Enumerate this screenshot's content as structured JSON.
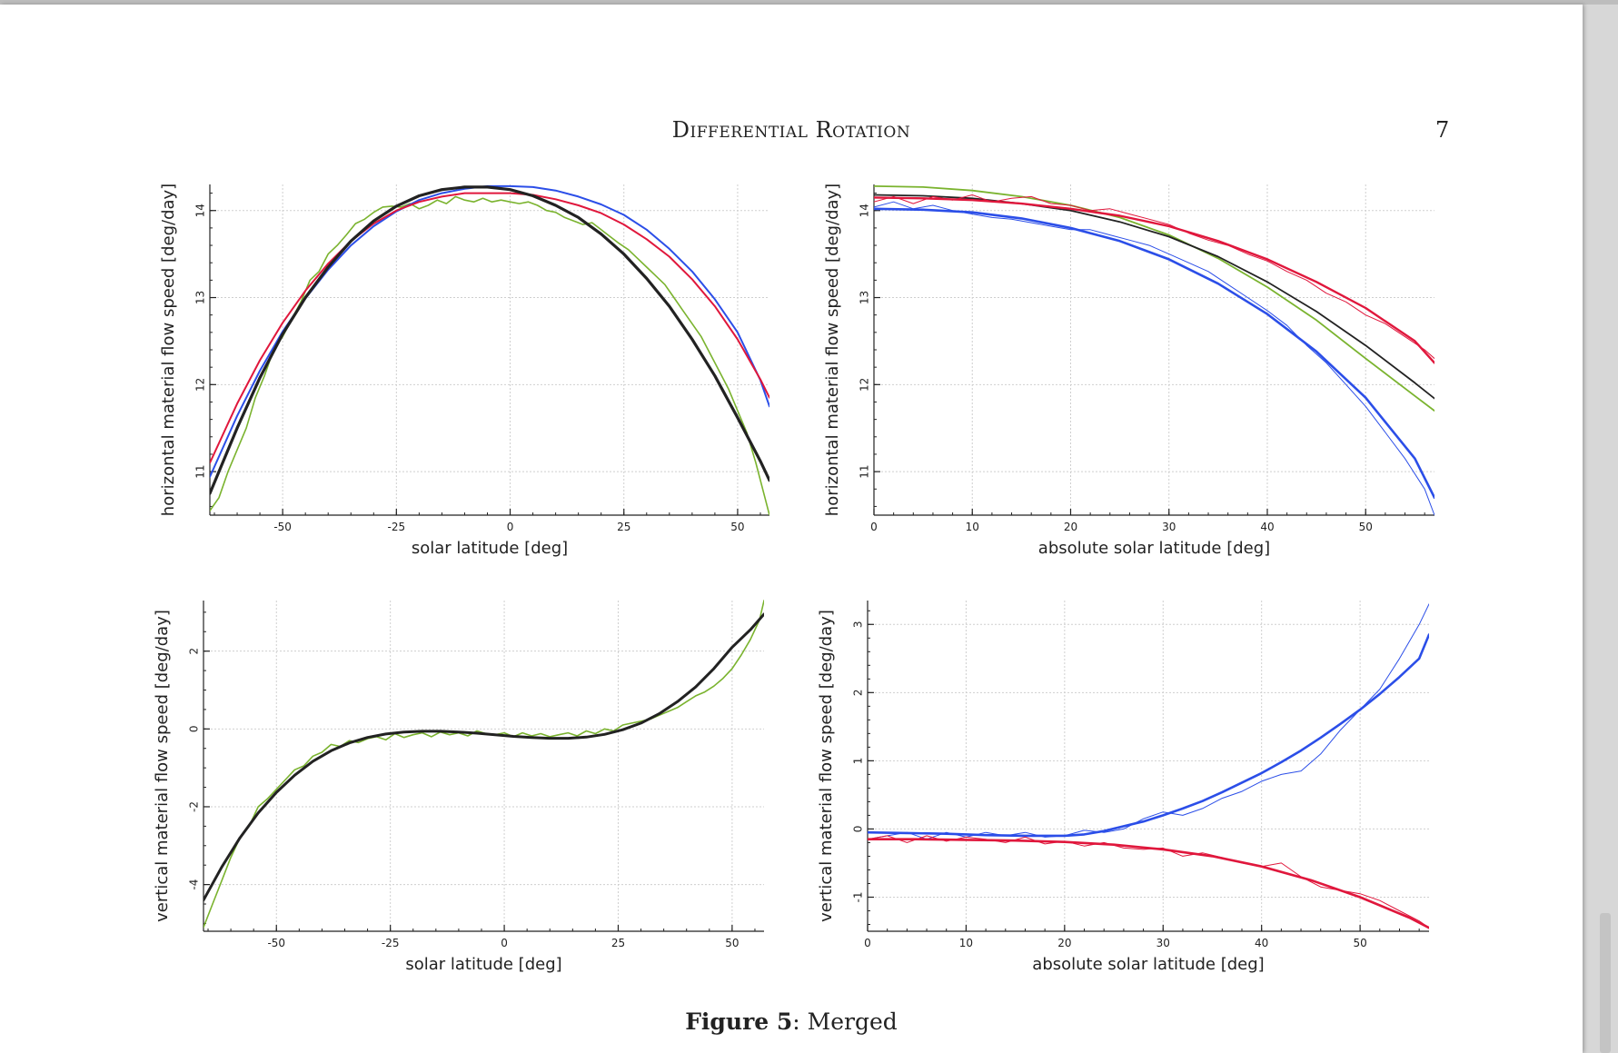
{
  "document": {
    "running_header": "Differential Rotation",
    "page_number": "7",
    "caption_label": "Figure 5",
    "caption_sep": ": ",
    "caption_text": "Merged"
  },
  "chart_data": [
    {
      "type": "line",
      "xlabel": "solar latitude [deg]",
      "ylabel": "horizontal material flow speed [deg/day]",
      "xlim": [
        -66,
        57
      ],
      "ylim": [
        10.5,
        14.3
      ],
      "xticks": [
        -50,
        -25,
        0,
        25,
        50
      ],
      "yticks": [
        11,
        12,
        13,
        14
      ],
      "grid": true,
      "series": [
        {
          "color": "#7ab32e",
          "width": 1.6,
          "x": [
            -66,
            -64,
            -62,
            -60,
            -58,
            -56,
            -54,
            -52,
            -50,
            -48,
            -46,
            -44,
            -42,
            -40,
            -38,
            -36,
            -34,
            -32,
            -30,
            -28,
            -26,
            -24,
            -22,
            -20,
            -18,
            -16,
            -14,
            -12,
            -10,
            -8,
            -6,
            -4,
            -2,
            0,
            2,
            4,
            6,
            8,
            10,
            12,
            14,
            16,
            18,
            20,
            22,
            24,
            26,
            28,
            30,
            32,
            34,
            36,
            38,
            40,
            42,
            44,
            46,
            48,
            50,
            52,
            54,
            56,
            57
          ],
          "y": [
            10.55,
            10.7,
            11.0,
            11.25,
            11.5,
            11.85,
            12.1,
            12.4,
            12.55,
            12.75,
            12.95,
            13.2,
            13.3,
            13.5,
            13.6,
            13.72,
            13.85,
            13.9,
            13.98,
            14.04,
            14.05,
            14.04,
            14.08,
            14.02,
            14.06,
            14.12,
            14.08,
            14.16,
            14.12,
            14.1,
            14.14,
            14.1,
            14.12,
            14.1,
            14.08,
            14.1,
            14.06,
            14.0,
            13.98,
            13.92,
            13.88,
            13.84,
            13.86,
            13.78,
            13.7,
            13.62,
            13.55,
            13.45,
            13.35,
            13.25,
            13.15,
            13.0,
            12.85,
            12.7,
            12.55,
            12.35,
            12.15,
            11.95,
            11.7,
            11.45,
            11.1,
            10.7,
            10.5
          ]
        },
        {
          "color": "#2b4ee8",
          "width": 2.0,
          "x": [
            -66,
            -60,
            -55,
            -50,
            -45,
            -40,
            -35,
            -30,
            -25,
            -20,
            -15,
            -10,
            -5,
            0,
            5,
            10,
            15,
            20,
            25,
            30,
            35,
            40,
            45,
            50,
            55,
            57
          ],
          "y": [
            10.94,
            11.64,
            12.16,
            12.61,
            12.99,
            13.32,
            13.6,
            13.82,
            13.99,
            14.12,
            14.2,
            14.25,
            14.28,
            14.28,
            14.27,
            14.23,
            14.16,
            14.07,
            13.95,
            13.78,
            13.56,
            13.3,
            12.98,
            12.6,
            12.05,
            11.75
          ]
        },
        {
          "color": "#e0173c",
          "width": 2.0,
          "x": [
            -66,
            -60,
            -55,
            -50,
            -45,
            -40,
            -35,
            -30,
            -25,
            -20,
            -15,
            -10,
            -5,
            0,
            5,
            10,
            15,
            20,
            25,
            30,
            35,
            40,
            45,
            50,
            55,
            57
          ],
          "y": [
            11.1,
            11.78,
            12.28,
            12.71,
            13.08,
            13.39,
            13.65,
            13.85,
            14.0,
            14.1,
            14.16,
            14.2,
            14.2,
            14.2,
            14.18,
            14.13,
            14.06,
            13.97,
            13.84,
            13.67,
            13.47,
            13.21,
            12.9,
            12.52,
            12.06,
            11.85
          ]
        },
        {
          "color": "#222222",
          "width": 3.2,
          "x": [
            -66,
            -60,
            -55,
            -50,
            -45,
            -40,
            -35,
            -30,
            -25,
            -20,
            -15,
            -10,
            -5,
            0,
            5,
            10,
            15,
            20,
            25,
            30,
            35,
            40,
            45,
            50,
            55,
            57
          ],
          "y": [
            10.75,
            11.5,
            12.08,
            12.58,
            13.0,
            13.35,
            13.65,
            13.88,
            14.05,
            14.17,
            14.24,
            14.27,
            14.27,
            14.24,
            14.17,
            14.06,
            13.92,
            13.73,
            13.5,
            13.22,
            12.9,
            12.52,
            12.1,
            11.62,
            11.12,
            10.9
          ]
        }
      ]
    },
    {
      "type": "line",
      "xlabel": "absolute solar latitude [deg]",
      "ylabel": "horizontal material flow speed [deg/day]",
      "xlim": [
        0,
        57
      ],
      "ylim": [
        10.5,
        14.3
      ],
      "xticks": [
        0,
        10,
        20,
        30,
        40,
        50
      ],
      "yticks": [
        11,
        12,
        13,
        14
      ],
      "grid": true,
      "series": [
        {
          "color": "#7ab32e",
          "width": 1.8,
          "x": [
            0,
            5,
            10,
            15,
            20,
            25,
            30,
            35,
            40,
            45,
            50,
            55,
            57
          ],
          "y": [
            14.28,
            14.27,
            14.23,
            14.16,
            14.06,
            13.92,
            13.72,
            13.45,
            13.12,
            12.74,
            12.3,
            11.87,
            11.7
          ]
        },
        {
          "color": "#222222",
          "width": 1.8,
          "x": [
            0,
            5,
            10,
            15,
            20,
            25,
            30,
            35,
            40,
            45,
            50,
            55,
            57
          ],
          "y": [
            14.18,
            14.17,
            14.14,
            14.08,
            14.0,
            13.87,
            13.7,
            13.47,
            13.18,
            12.84,
            12.45,
            12.02,
            11.84
          ]
        },
        {
          "color": "#e0173c",
          "width": 1.0,
          "x": [
            0,
            2,
            4,
            6,
            8,
            10,
            12,
            14,
            16,
            18,
            20,
            22,
            24,
            26,
            28,
            30,
            32,
            34,
            36,
            38,
            40,
            42,
            44,
            46,
            48,
            50,
            52,
            54,
            56,
            57
          ],
          "y": [
            14.1,
            14.16,
            14.08,
            14.16,
            14.12,
            14.18,
            14.1,
            14.14,
            14.16,
            14.08,
            14.06,
            14.0,
            14.02,
            13.96,
            13.9,
            13.84,
            13.74,
            13.66,
            13.6,
            13.5,
            13.42,
            13.3,
            13.2,
            13.05,
            12.95,
            12.8,
            12.7,
            12.55,
            12.4,
            12.3
          ]
        },
        {
          "color": "#e0173c",
          "width": 2.4,
          "x": [
            0,
            5,
            10,
            15,
            20,
            25,
            30,
            35,
            40,
            45,
            50,
            55,
            57
          ],
          "y": [
            14.15,
            14.14,
            14.12,
            14.08,
            14.02,
            13.94,
            13.82,
            13.65,
            13.44,
            13.18,
            12.88,
            12.5,
            12.25
          ]
        },
        {
          "color": "#2b4ee8",
          "width": 1.0,
          "x": [
            0,
            2,
            4,
            6,
            8,
            10,
            12,
            14,
            16,
            18,
            20,
            22,
            24,
            26,
            28,
            30,
            32,
            34,
            36,
            38,
            40,
            42,
            44,
            46,
            48,
            50,
            52,
            54,
            56,
            57
          ],
          "y": [
            14.04,
            14.1,
            14.02,
            14.06,
            14.0,
            13.96,
            13.92,
            13.9,
            13.86,
            13.82,
            13.78,
            13.78,
            13.72,
            13.66,
            13.6,
            13.5,
            13.4,
            13.3,
            13.15,
            13.0,
            12.85,
            12.68,
            12.45,
            12.25,
            12.0,
            11.75,
            11.45,
            11.15,
            10.8,
            10.5
          ]
        },
        {
          "color": "#2b4ee8",
          "width": 2.6,
          "x": [
            0,
            5,
            10,
            15,
            20,
            25,
            30,
            35,
            40,
            45,
            50,
            55,
            57
          ],
          "y": [
            14.02,
            14.01,
            13.98,
            13.91,
            13.8,
            13.65,
            13.44,
            13.16,
            12.81,
            12.38,
            11.85,
            11.15,
            10.7
          ]
        }
      ]
    },
    {
      "type": "line",
      "xlabel": "solar latitude [deg]",
      "ylabel": "vertical material flow speed [deg/day]",
      "xlim": [
        -66,
        57
      ],
      "ylim": [
        -5.2,
        3.3
      ],
      "xticks": [
        -50,
        -25,
        0,
        25,
        50
      ],
      "yticks": [
        -4,
        -2,
        0,
        2
      ],
      "grid": true,
      "series": [
        {
          "color": "#7ab32e",
          "width": 1.6,
          "x": [
            -66,
            -64,
            -62,
            -60,
            -58,
            -56,
            -54,
            -52,
            -50,
            -48,
            -46,
            -44,
            -42,
            -40,
            -38,
            -36,
            -34,
            -32,
            -30,
            -28,
            -26,
            -24,
            -22,
            -20,
            -18,
            -16,
            -14,
            -12,
            -10,
            -8,
            -6,
            -4,
            -2,
            0,
            2,
            4,
            6,
            8,
            10,
            12,
            14,
            16,
            18,
            20,
            22,
            24,
            26,
            28,
            30,
            32,
            34,
            36,
            38,
            40,
            42,
            44,
            46,
            48,
            50,
            52,
            54,
            56,
            57
          ],
          "y": [
            -5.1,
            -4.5,
            -3.9,
            -3.3,
            -2.8,
            -2.5,
            -2.0,
            -1.8,
            -1.55,
            -1.3,
            -1.05,
            -0.95,
            -0.7,
            -0.6,
            -0.4,
            -0.45,
            -0.3,
            -0.35,
            -0.25,
            -0.2,
            -0.28,
            -0.12,
            -0.22,
            -0.15,
            -0.1,
            -0.2,
            -0.08,
            -0.15,
            -0.1,
            -0.18,
            -0.05,
            -0.12,
            -0.15,
            -0.1,
            -0.2,
            -0.1,
            -0.18,
            -0.12,
            -0.2,
            -0.15,
            -0.1,
            -0.18,
            -0.05,
            -0.12,
            0.0,
            -0.05,
            0.1,
            0.15,
            0.2,
            0.25,
            0.35,
            0.45,
            0.55,
            0.7,
            0.85,
            0.95,
            1.1,
            1.3,
            1.55,
            1.9,
            2.3,
            2.8,
            3.3
          ]
        },
        {
          "color": "#222222",
          "width": 3.0,
          "x": [
            -66,
            -62,
            -58,
            -54,
            -50,
            -46,
            -42,
            -38,
            -34,
            -30,
            -26,
            -22,
            -18,
            -14,
            -10,
            -6,
            -2,
            2,
            6,
            10,
            14,
            18,
            22,
            26,
            30,
            34,
            38,
            42,
            46,
            50,
            54,
            57
          ],
          "y": [
            -4.4,
            -3.55,
            -2.8,
            -2.16,
            -1.63,
            -1.19,
            -0.83,
            -0.56,
            -0.36,
            -0.22,
            -0.13,
            -0.08,
            -0.06,
            -0.06,
            -0.08,
            -0.11,
            -0.15,
            -0.19,
            -0.22,
            -0.24,
            -0.24,
            -0.21,
            -0.14,
            -0.02,
            0.15,
            0.39,
            0.7,
            1.08,
            1.55,
            2.1,
            2.55,
            2.95
          ]
        }
      ]
    },
    {
      "type": "line",
      "xlabel": "absolute solar latitude [deg]",
      "ylabel": "vertical material flow speed [deg/day]",
      "xlim": [
        0,
        57
      ],
      "ylim": [
        -1.5,
        3.35
      ],
      "xticks": [
        0,
        10,
        20,
        30,
        40,
        50
      ],
      "yticks": [
        -1,
        0,
        1,
        2,
        3
      ],
      "grid": true,
      "series": [
        {
          "color": "#2b4ee8",
          "width": 1.0,
          "x": [
            0,
            2,
            4,
            6,
            8,
            10,
            12,
            14,
            16,
            18,
            20,
            22,
            24,
            26,
            28,
            30,
            32,
            34,
            36,
            38,
            40,
            42,
            44,
            46,
            48,
            50,
            52,
            54,
            56,
            57
          ],
          "y": [
            -0.15,
            -0.1,
            -0.05,
            -0.15,
            -0.05,
            -0.12,
            -0.05,
            -0.1,
            -0.05,
            -0.12,
            -0.1,
            -0.02,
            -0.05,
            0.0,
            0.15,
            0.25,
            0.2,
            0.3,
            0.45,
            0.55,
            0.7,
            0.8,
            0.85,
            1.1,
            1.45,
            1.75,
            2.05,
            2.5,
            3.0,
            3.3
          ]
        },
        {
          "color": "#2b4ee8",
          "width": 2.6,
          "x": [
            0,
            4,
            8,
            12,
            16,
            20,
            22,
            24,
            26,
            28,
            30,
            32,
            34,
            36,
            38,
            40,
            42,
            44,
            46,
            48,
            50,
            52,
            54,
            56,
            57
          ],
          "y": [
            -0.05,
            -0.06,
            -0.07,
            -0.09,
            -0.1,
            -0.1,
            -0.08,
            -0.03,
            0.04,
            0.11,
            0.2,
            0.3,
            0.41,
            0.54,
            0.68,
            0.82,
            0.98,
            1.15,
            1.34,
            1.54,
            1.75,
            1.98,
            2.23,
            2.5,
            2.85
          ]
        },
        {
          "color": "#e0173c",
          "width": 1.0,
          "x": [
            0,
            2,
            4,
            6,
            8,
            10,
            12,
            14,
            16,
            18,
            20,
            22,
            24,
            26,
            28,
            30,
            32,
            34,
            36,
            38,
            40,
            42,
            44,
            46,
            48,
            50,
            52,
            54,
            56,
            57
          ],
          "y": [
            -0.15,
            -0.1,
            -0.2,
            -0.1,
            -0.18,
            -0.12,
            -0.15,
            -0.2,
            -0.12,
            -0.22,
            -0.18,
            -0.25,
            -0.2,
            -0.28,
            -0.3,
            -0.28,
            -0.4,
            -0.35,
            -0.42,
            -0.5,
            -0.55,
            -0.5,
            -0.7,
            -0.85,
            -0.9,
            -0.95,
            -1.05,
            -1.2,
            -1.35,
            -1.45
          ]
        },
        {
          "color": "#e0173c",
          "width": 2.6,
          "x": [
            0,
            5,
            10,
            15,
            20,
            25,
            30,
            35,
            40,
            45,
            50,
            55,
            57
          ],
          "y": [
            -0.15,
            -0.15,
            -0.16,
            -0.17,
            -0.19,
            -0.23,
            -0.3,
            -0.4,
            -0.55,
            -0.75,
            -1.0,
            -1.3,
            -1.45
          ]
        }
      ]
    }
  ]
}
